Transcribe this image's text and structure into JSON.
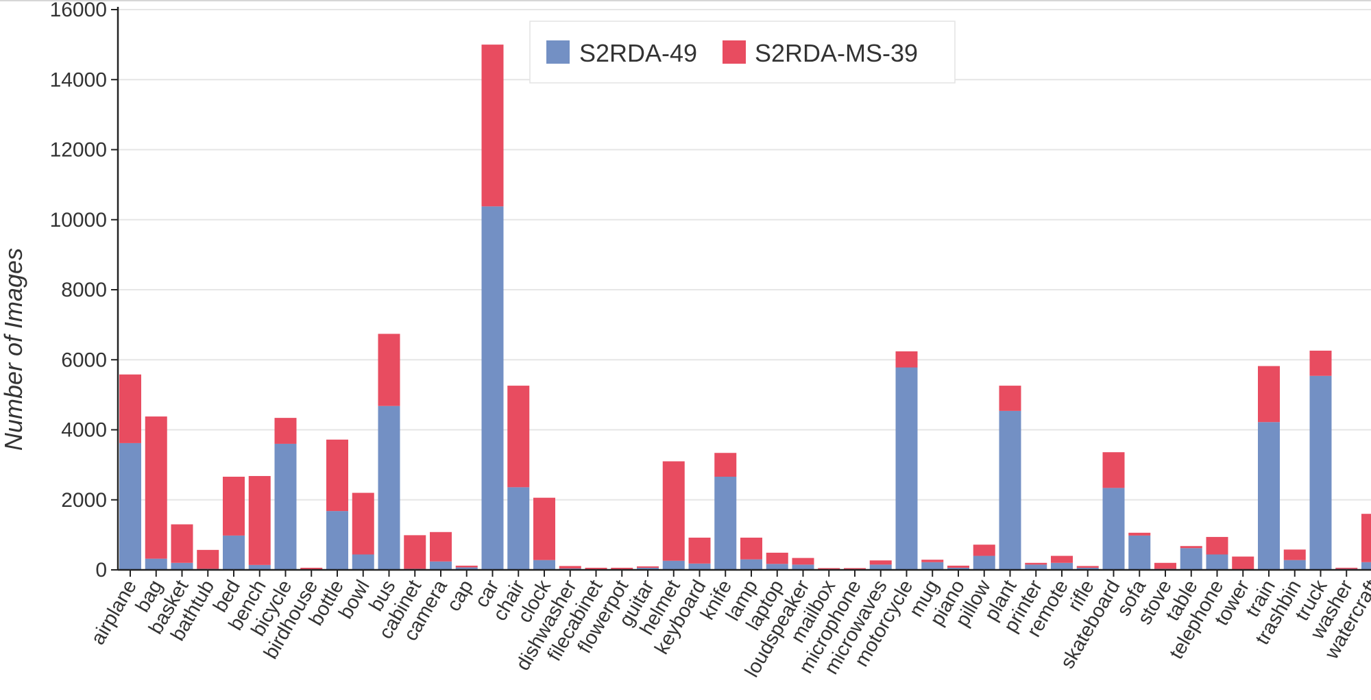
{
  "chart_data": {
    "type": "bar",
    "stacked": true,
    "title": "",
    "xlabel": "",
    "ylabel": "Number of Images",
    "ylim": [
      0,
      16000
    ],
    "yticks": [
      "0",
      "2000",
      "4000",
      "6000",
      "8000",
      "10000",
      "12000",
      "14000",
      "16000"
    ],
    "grid": true,
    "legend_position": "top-center",
    "categories": [
      "airplane",
      "bag",
      "basket",
      "bathtub",
      "bed",
      "bench",
      "bicycle",
      "birdhouse",
      "bottle",
      "bowl",
      "bus",
      "cabinet",
      "camera",
      "cap",
      "car",
      "chair",
      "clock",
      "dishwasher",
      "filecabinet",
      "flowerpot",
      "guitar",
      "helmet",
      "keyboard",
      "knife",
      "lamp",
      "laptop",
      "loudspeaker",
      "mailbox",
      "microphone",
      "microwaves",
      "motorcycle",
      "mug",
      "piano",
      "pillow",
      "plant",
      "printer",
      "remote",
      "rifle",
      "skateboard",
      "sofa",
      "stove",
      "table",
      "telephone",
      "tower",
      "train",
      "trashbin",
      "truck",
      "washer",
      "watercraft"
    ],
    "series": [
      {
        "name": "S2RDA-49",
        "color": "#7390c4",
        "values": [
          3620,
          320,
          200,
          30,
          980,
          140,
          3600,
          20,
          1680,
          440,
          4680,
          30,
          240,
          70,
          10380,
          2360,
          280,
          40,
          20,
          20,
          60,
          260,
          180,
          2660,
          300,
          170,
          150,
          20,
          20,
          150,
          5780,
          220,
          60,
          400,
          4540,
          150,
          200,
          60,
          2340,
          980,
          30,
          620,
          440,
          20,
          4220,
          280,
          5540,
          30,
          220
        ]
      },
      {
        "name": "S2RDA-MS-39",
        "color": "#e84c60",
        "values": [
          1960,
          4060,
          1100,
          540,
          1680,
          2540,
          740,
          40,
          2040,
          1760,
          2060,
          960,
          840,
          50,
          4620,
          2900,
          1780,
          70,
          40,
          40,
          40,
          2840,
          740,
          680,
          620,
          320,
          190,
          30,
          30,
          120,
          460,
          70,
          60,
          320,
          720,
          50,
          200,
          50,
          1020,
          80,
          170,
          60,
          500,
          360,
          1600,
          300,
          720,
          30,
          1380
        ]
      }
    ]
  }
}
